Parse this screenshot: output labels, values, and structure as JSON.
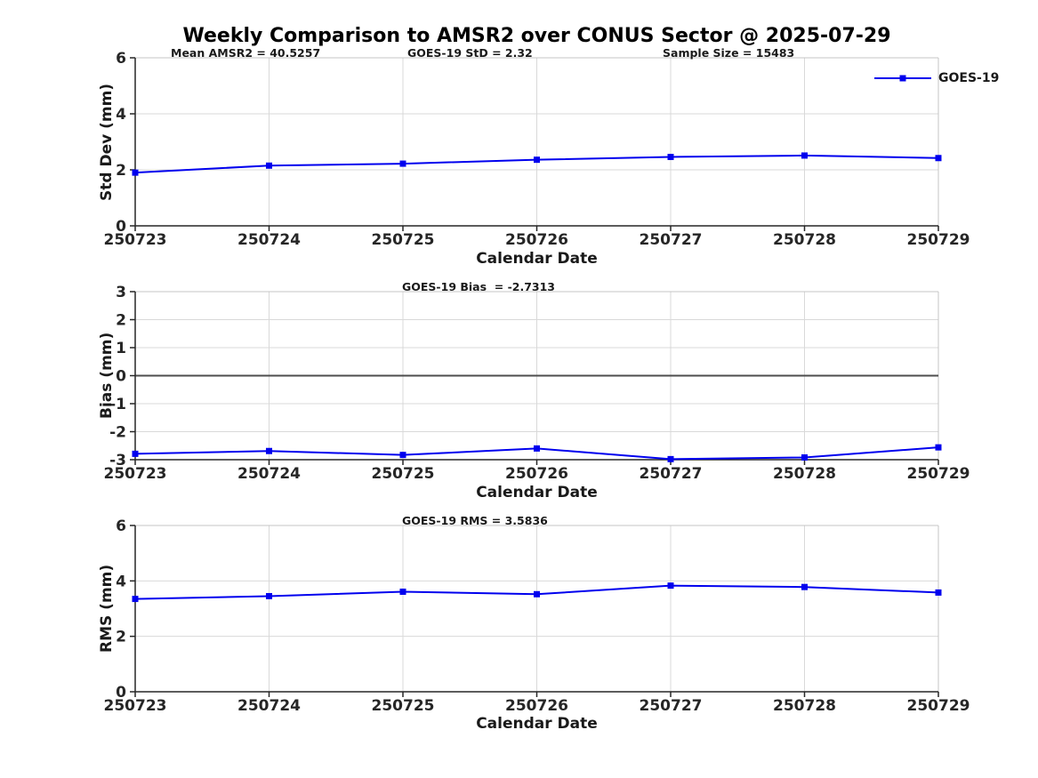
{
  "title": "Weekly Comparison to AMSR2 over CONUS Sector @ 2025-07-29",
  "colors": {
    "line": "#0000ee",
    "grid": "#d9d9d9",
    "box": "#c4c4c4",
    "axis": "#262626",
    "zero_line": "#4d4d4d",
    "background": "#ffffff"
  },
  "chart_data": [
    {
      "type": "line",
      "categories": [
        "250723",
        "250724",
        "250725",
        "250726",
        "250727",
        "250728",
        "250729"
      ],
      "series": [
        {
          "name": "GOES-19",
          "values": [
            1.9,
            2.15,
            2.22,
            2.36,
            2.46,
            2.51,
            2.42
          ]
        }
      ],
      "title_annotations": [
        {
          "text": "Mean AMSR2 = 40.5257"
        },
        {
          "text": "GOES-19 StD = 2.32"
        },
        {
          "text": "Sample Size = 15483"
        }
      ],
      "xlabel": "Calendar Date",
      "ylabel": "Std Dev (mm)",
      "ylim": [
        0,
        6
      ],
      "yticks": [
        0,
        2,
        4,
        6
      ],
      "grid": true,
      "zero_line": false,
      "legend": {
        "label": "GOES-19",
        "position": "northeast-outside"
      }
    },
    {
      "type": "line",
      "categories": [
        "250723",
        "250724",
        "250725",
        "250726",
        "250727",
        "250728",
        "250729"
      ],
      "series": [
        {
          "name": "GOES-19",
          "values": [
            -2.79,
            -2.69,
            -2.83,
            -2.6,
            -2.98,
            -2.92,
            -2.56
          ]
        }
      ],
      "title_annotations": [
        {
          "text": "GOES-19 Bias  = -2.7313"
        }
      ],
      "xlabel": "Calendar Date",
      "ylabel": "Bias (mm)",
      "ylim": [
        -3,
        3
      ],
      "yticks": [
        -3,
        -2,
        -1,
        0,
        1,
        2,
        3
      ],
      "grid": true,
      "zero_line": true
    },
    {
      "type": "line",
      "categories": [
        "250723",
        "250724",
        "250725",
        "250726",
        "250727",
        "250728",
        "250729"
      ],
      "series": [
        {
          "name": "GOES-19",
          "values": [
            3.35,
            3.45,
            3.61,
            3.52,
            3.83,
            3.78,
            3.58
          ]
        }
      ],
      "title_annotations": [
        {
          "text": "GOES-19 RMS = 3.5836"
        }
      ],
      "xlabel": "Calendar Date",
      "ylabel": "RMS (mm)",
      "ylim": [
        0,
        6
      ],
      "yticks": [
        0,
        2,
        4,
        6
      ],
      "grid": true,
      "zero_line": false
    }
  ]
}
